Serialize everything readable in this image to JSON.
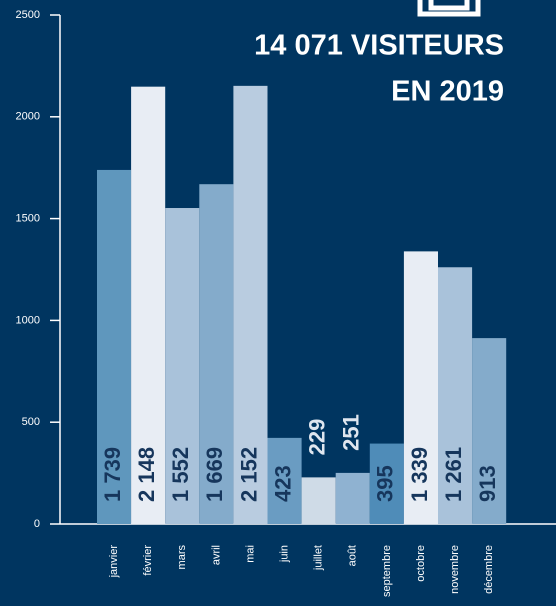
{
  "chart_data": {
    "type": "bar",
    "title": [
      "14 071 VISITEURS",
      "EN 2019"
    ],
    "categories": [
      "janvier",
      "février",
      "mars",
      "avril",
      "mai",
      "juin",
      "juillet",
      "août",
      "septembre",
      "octobre",
      "novembre",
      "décembre"
    ],
    "values": [
      1739,
      2148,
      1552,
      1669,
      2152,
      423,
      229,
      251,
      395,
      1339,
      1261,
      913
    ],
    "value_labels": [
      "1 739",
      "2 148",
      "1 552",
      "1 669",
      "2 152",
      "423",
      "229",
      "251",
      "395",
      "1 339",
      "1 261",
      "913"
    ],
    "colors": [
      "#5f97bd",
      "#e8edf4",
      "#a9c2da",
      "#84abcb",
      "#b9cce0",
      "#6a9cc2",
      "#cfdbe7",
      "#8fb2d1",
      "#4f8cb8",
      "#e8edf4",
      "#a9c2da",
      "#84abcb"
    ],
    "ylim": [
      0,
      2500
    ],
    "yticks": [
      0,
      500,
      1000,
      1500,
      2000,
      2500
    ]
  }
}
